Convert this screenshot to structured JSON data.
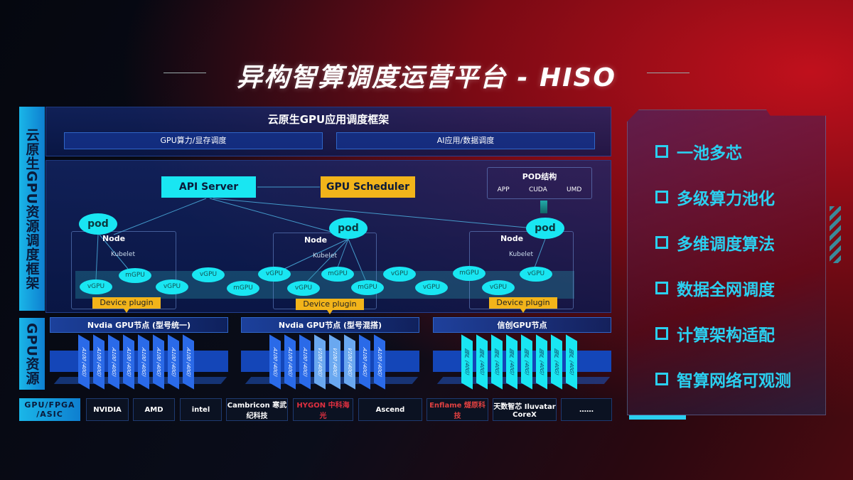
{
  "title": "异构智算调度运营平台 - HISO",
  "left_labels": {
    "cloud_native": "云原生GPU资源调度框架",
    "gpu_resource": "GPU资源",
    "hardware": "GPU/FPGA /ASIC"
  },
  "framework": {
    "title": "云原生GPU应用调度框架",
    "sub": [
      "GPU算力/显存调度",
      "AI应用/数据调度"
    ]
  },
  "api_server": "API Server",
  "gpu_scheduler": "GPU Scheduler",
  "pod_struct": {
    "title": "POD结构",
    "items": [
      "APP",
      "CUDA",
      "UMD"
    ]
  },
  "pod_label": "pod",
  "node_label": "Node",
  "kubelet_label": "Kubelet",
  "device_plugin": "Device plugin",
  "vgpus": [
    "vGPU",
    "mGPU",
    "vGPU",
    "vGPU",
    "mGPU",
    "vGPU",
    "vGPU",
    "mGPU",
    "mGPU",
    "vGPU",
    "vGPU",
    "mGPU",
    "vGPU",
    "vGPU"
  ],
  "gpu_nodes": [
    {
      "title": "Nvdia GPU节点 (型号统一)",
      "cards": [
        "A100 (40G)",
        "A100 (40G)",
        "A100 (40G)",
        "A100 (40G)",
        "A100 (40G)",
        "A100 (40G)",
        "A100 (40G)",
        "A100 (40G)"
      ]
    },
    {
      "title": "Nvdia GPU节点 (型号混搭)",
      "cards": [
        "A100 (40G)",
        "A100 (40G)",
        "A100 (40G)",
        "V100 (40G)",
        "V100 (40G)",
        "V100 (40G)",
        "A100 (40G)",
        "A100 (40G)"
      ]
    },
    {
      "title": "信创GPU节点",
      "cards": [
        "国产 (40G)",
        "国产 (40G)",
        "国产 (40G)",
        "国产 (40G)",
        "国产 (40G)",
        "国产 (40G)",
        "国产 (40G)",
        "国产 (40G)"
      ]
    }
  ],
  "vendors": [
    "NVIDIA",
    "AMD",
    "intel",
    "Cambricon 寒武纪科技",
    "HYGON 中科海光",
    "Ascend",
    "Enflame 燧原科技",
    "天数智芯 Iluvatar CoreX",
    "……"
  ],
  "features": [
    "一池多芯",
    "多级算力池化",
    "多维调度算法",
    "数据全网调度",
    "计算架构适配",
    "智算网络可观测"
  ],
  "colors": {
    "cyan": "#19e6f2",
    "orange": "#f2b41a",
    "blue": "#1446b8"
  }
}
